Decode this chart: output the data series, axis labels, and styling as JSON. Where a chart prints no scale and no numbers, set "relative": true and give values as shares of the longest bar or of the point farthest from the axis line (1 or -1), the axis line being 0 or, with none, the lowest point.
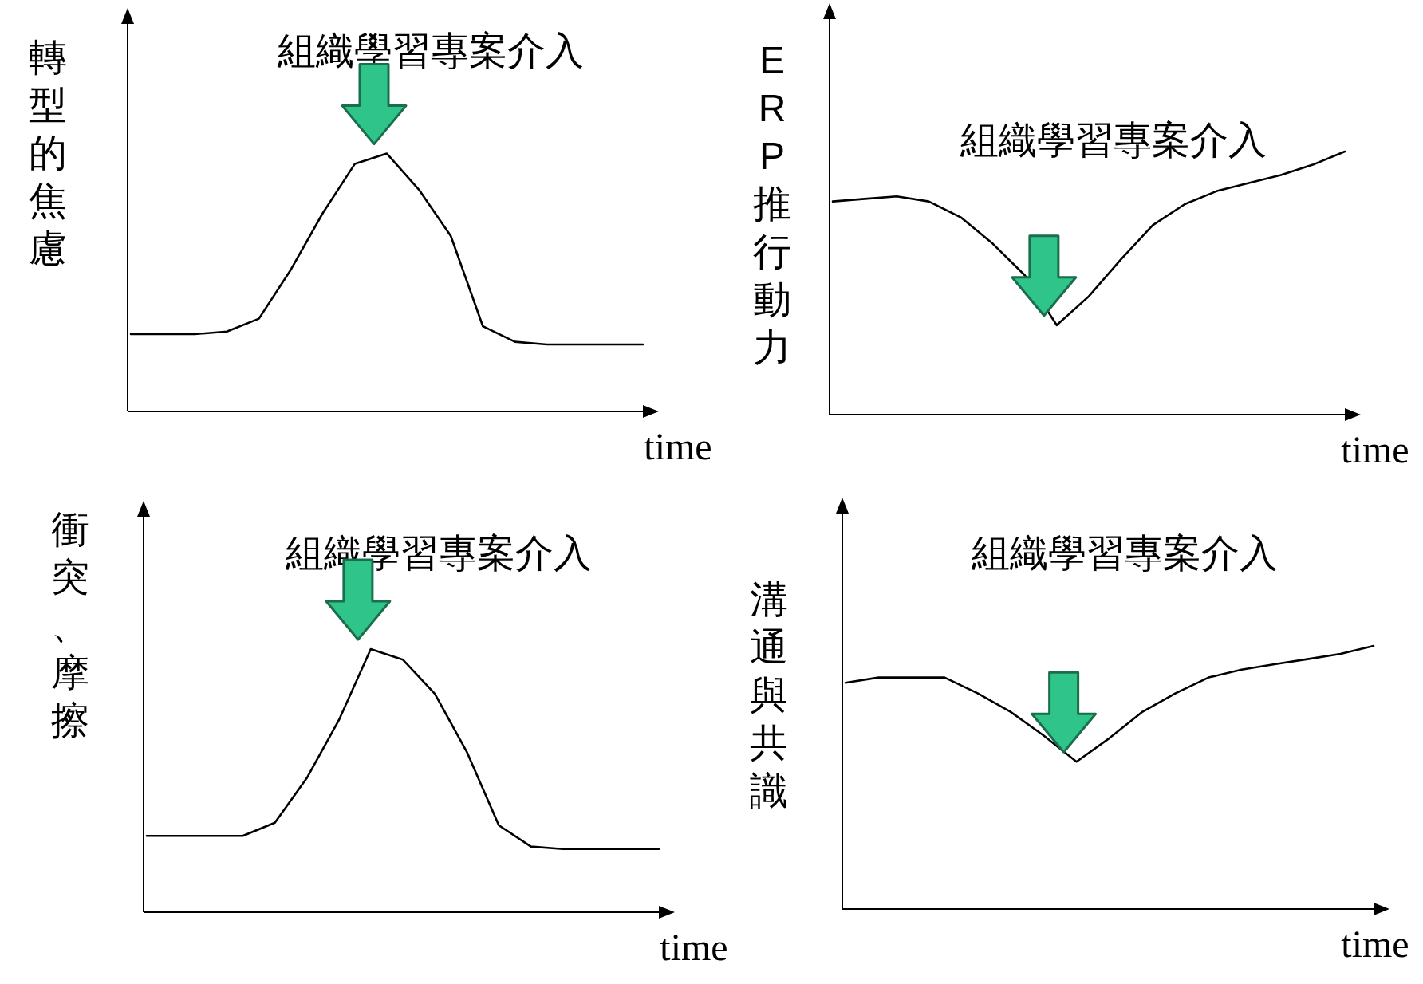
{
  "chart_data": [
    {
      "type": "line",
      "relative": true,
      "ylabel": "轉型的焦慮",
      "xlabel": "time",
      "annotations": [
        "組織學習專案介入"
      ],
      "categories": [
        null,
        null,
        null,
        null,
        null,
        null,
        null,
        null,
        null,
        null,
        null,
        null,
        null,
        null,
        null,
        null,
        null
      ],
      "values": [
        0.3,
        0.3,
        0.3,
        0.31,
        0.36,
        0.55,
        0.77,
        0.96,
        1.0,
        0.86,
        0.68,
        0.33,
        0.27,
        0.26,
        0.26,
        0.26,
        0.26
      ],
      "color": "#000000"
    },
    {
      "type": "line",
      "relative": true,
      "ylabel": "ERP推行動力",
      "xlabel": "time",
      "annotations": [
        "組織學習專案介入"
      ],
      "categories": [
        null,
        null,
        null,
        null,
        null,
        null,
        null,
        null,
        null,
        null,
        null,
        null,
        null,
        null,
        null,
        null,
        null
      ],
      "values": [
        0.81,
        0.82,
        0.83,
        0.81,
        0.75,
        0.65,
        0.53,
        0.34,
        0.45,
        0.59,
        0.72,
        0.8,
        0.85,
        0.88,
        0.91,
        0.95,
        1.0
      ],
      "color": "#000000"
    },
    {
      "type": "line",
      "relative": true,
      "ylabel": "衝突、摩擦",
      "xlabel": "time",
      "annotations": [
        "組織學習專案介入"
      ],
      "categories": [
        null,
        null,
        null,
        null,
        null,
        null,
        null,
        null,
        null,
        null,
        null,
        null,
        null,
        null,
        null,
        null,
        null
      ],
      "values": [
        0.29,
        0.29,
        0.29,
        0.29,
        0.34,
        0.51,
        0.73,
        1.0,
        0.96,
        0.83,
        0.61,
        0.33,
        0.25,
        0.24,
        0.24,
        0.24,
        0.24
      ],
      "color": "#000000"
    },
    {
      "type": "line",
      "relative": true,
      "ylabel": "溝通與共識",
      "xlabel": "time",
      "annotations": [
        "組織學習專案介入"
      ],
      "categories": [
        null,
        null,
        null,
        null,
        null,
        null,
        null,
        null,
        null,
        null,
        null,
        null,
        null,
        null,
        null,
        null,
        null
      ],
      "values": [
        0.86,
        0.88,
        0.88,
        0.88,
        0.82,
        0.75,
        0.66,
        0.56,
        0.65,
        0.75,
        0.82,
        0.88,
        0.91,
        0.93,
        0.95,
        0.97,
        1.0
      ],
      "color": "#000000"
    }
  ]
}
